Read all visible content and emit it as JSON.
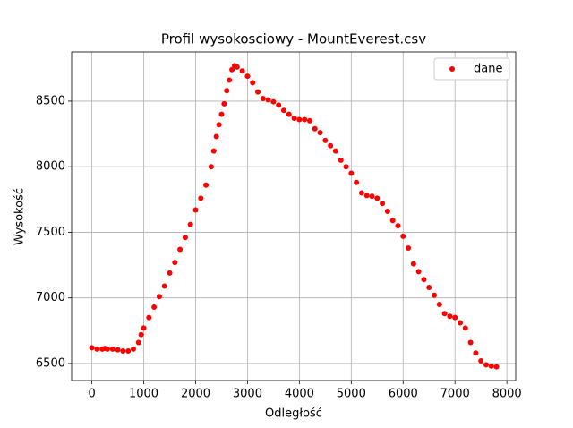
{
  "chart_data": {
    "type": "scatter",
    "title": "Profil wysokosciowy - MountEverest.csv",
    "x_label": "Odległość",
    "y_label": "Wysokość",
    "series": [
      {
        "name": "dane",
        "color": "#ff0000",
        "x": [
          0,
          100,
          200,
          250,
          300,
          400,
          500,
          600,
          700,
          800,
          900,
          950,
          1000,
          1100,
          1200,
          1300,
          1400,
          1500,
          1600,
          1700,
          1800,
          1900,
          2000,
          2100,
          2200,
          2300,
          2350,
          2400,
          2450,
          2500,
          2550,
          2600,
          2650,
          2700,
          2750,
          2800,
          2900,
          3000,
          3100,
          3200,
          3300,
          3400,
          3500,
          3600,
          3700,
          3800,
          3900,
          4000,
          4100,
          4200,
          4300,
          4400,
          4500,
          4600,
          4700,
          4800,
          4900,
          5000,
          5100,
          5200,
          5300,
          5400,
          5500,
          5600,
          5700,
          5800,
          5900,
          6000,
          6100,
          6200,
          6300,
          6400,
          6500,
          6600,
          6700,
          6800,
          6900,
          7000,
          7100,
          7200,
          7300,
          7400,
          7500,
          7600,
          7700,
          7800
        ],
        "values": [
          6620,
          6610,
          6610,
          6615,
          6610,
          6610,
          6605,
          6595,
          6595,
          6610,
          6660,
          6720,
          6770,
          6850,
          6930,
          7010,
          7090,
          7190,
          7270,
          7370,
          7460,
          7560,
          7670,
          7760,
          7860,
          8000,
          8120,
          8230,
          8320,
          8400,
          8480,
          8580,
          8660,
          8740,
          8770,
          8760,
          8730,
          8690,
          8640,
          8570,
          8520,
          8510,
          8495,
          8470,
          8430,
          8400,
          8370,
          8360,
          8360,
          8350,
          8290,
          8260,
          8200,
          8160,
          8120,
          8050,
          8000,
          7950,
          7880,
          7800,
          7780,
          7775,
          7760,
          7720,
          7660,
          7590,
          7550,
          7470,
          7380,
          7260,
          7200,
          7140,
          7080,
          7020,
          6950,
          6880,
          6860,
          6850,
          6810,
          6770,
          6660,
          6580,
          6520,
          6490,
          6480,
          6475
        ]
      }
    ],
    "xlim": [
      -390,
      8170
    ],
    "ylim": [
      6370,
      8875
    ],
    "xticks": [
      0,
      1000,
      2000,
      3000,
      4000,
      5000,
      6000,
      7000,
      8000
    ],
    "yticks": [
      6500,
      7000,
      7500,
      8000,
      8500
    ],
    "grid": true,
    "legend": "upper right"
  }
}
